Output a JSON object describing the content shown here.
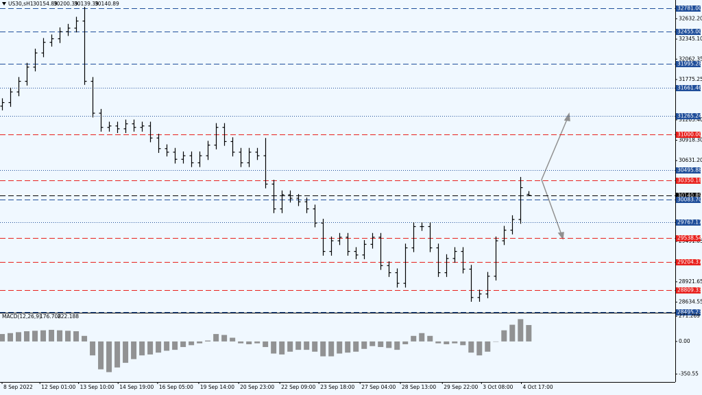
{
  "chart_data": [
    {
      "type": "candlestick",
      "symbol": "US30,sH1",
      "x": [
        0,
        1,
        2,
        3,
        4,
        5,
        6,
        7,
        8,
        9,
        10,
        11,
        12,
        13,
        14,
        15,
        16,
        17,
        18,
        19,
        20,
        21,
        22,
        23,
        24,
        25,
        26,
        27,
        28,
        29,
        30,
        31,
        32,
        33,
        34,
        35,
        36,
        37,
        38,
        39,
        40,
        41,
        42,
        43,
        44,
        45,
        46,
        47,
        48,
        49,
        50,
        51,
        52,
        53,
        54,
        55,
        56,
        57,
        58,
        59,
        60,
        61,
        62,
        63,
        64
      ],
      "open": [
        31400,
        31450,
        31600,
        31750,
        31950,
        32150,
        32300,
        32350,
        32450,
        32500,
        32600,
        31750,
        31300,
        31100,
        31120,
        31080,
        31150,
        31100,
        31120,
        30950,
        30800,
        30750,
        30650,
        30700,
        30600,
        30700,
        30850,
        31100,
        30900,
        30750,
        30600,
        30750,
        30700,
        30300,
        29950,
        30150,
        30100,
        30050,
        29950,
        29750,
        29350,
        29500,
        29550,
        29350,
        29300,
        29450,
        29550,
        29150,
        29050,
        28900,
        29400,
        29700,
        29700,
        29400,
        29050,
        29250,
        29350,
        29100,
        28700,
        28750,
        29000,
        29500,
        29650,
        29800,
        30154.89
      ],
      "high": [
        31510,
        31660,
        31810,
        32010,
        32210,
        32360,
        32410,
        32510,
        32560,
        32660,
        32800,
        31810,
        31360,
        31180,
        31180,
        31210,
        31210,
        31180,
        31180,
        31010,
        30860,
        30810,
        30760,
        30760,
        30760,
        30910,
        31160,
        31160,
        30960,
        30810,
        30810,
        30810,
        30950,
        30360,
        30210,
        30210,
        30160,
        30110,
        30010,
        29810,
        29560,
        29610,
        29610,
        29410,
        29510,
        29610,
        29610,
        29210,
        29110,
        29460,
        29760,
        29760,
        29760,
        29460,
        29310,
        29410,
        29410,
        29160,
        28810,
        29060,
        29560,
        29710,
        29860,
        30400,
        30200.39
      ],
      "low": [
        31340,
        31390,
        31540,
        31690,
        31890,
        32090,
        32240,
        32290,
        32390,
        32440,
        31700,
        31240,
        31040,
        31040,
        31020,
        31020,
        31040,
        31040,
        30890,
        30740,
        30690,
        30590,
        30590,
        30540,
        30540,
        30640,
        30790,
        30840,
        30690,
        30540,
        30540,
        30640,
        30240,
        29890,
        29890,
        30040,
        29990,
        29890,
        29690,
        29290,
        29290,
        29440,
        29290,
        29240,
        29240,
        29390,
        29090,
        28990,
        28840,
        28840,
        29340,
        29640,
        29340,
        28990,
        28990,
        29190,
        29040,
        28640,
        28640,
        28690,
        28940,
        29440,
        29590,
        29740,
        30139.39
      ],
      "close": [
        31450,
        31600,
        31750,
        31950,
        32150,
        32300,
        32350,
        32450,
        32500,
        32600,
        31750,
        31300,
        31100,
        31120,
        31080,
        31150,
        31100,
        31120,
        30950,
        30800,
        30750,
        30650,
        30700,
        30600,
        30700,
        30850,
        31100,
        30900,
        30750,
        30600,
        30750,
        30700,
        30300,
        29950,
        30150,
        30100,
        30050,
        29950,
        29750,
        29350,
        29500,
        29550,
        29350,
        29300,
        29450,
        29550,
        29150,
        29050,
        28900,
        29400,
        29700,
        29700,
        29400,
        29050,
        29250,
        29350,
        29100,
        28700,
        28750,
        29000,
        29500,
        29650,
        29800,
        30250,
        30140.89
      ],
      "color": "#000000",
      "xlim": [
        -0.25,
        81.8
      ],
      "xticks": [
        {
          "value": 0,
          "label": "8 Sep 2022"
        },
        {
          "value": 4.6,
          "label": "12 Sep 01:00"
        },
        {
          "value": 9.3,
          "label": "13 Sep 10:00"
        },
        {
          "value": 14.1,
          "label": "14 Sep 19:00"
        },
        {
          "value": 18.9,
          "label": "16 Sep 05:00"
        },
        {
          "value": 23.9,
          "label": "19 Sep 14:00"
        },
        {
          "value": 28.75,
          "label": "20 Sep 23:00"
        },
        {
          "value": 33.75,
          "label": "22 Sep 09:00"
        },
        {
          "value": 38.5,
          "label": "23 Sep 18:00"
        },
        {
          "value": 43.5,
          "label": "27 Sep 04:00"
        },
        {
          "value": 48.4,
          "label": "28 Sep 13:00"
        },
        {
          "value": 53.5,
          "label": "29 Sep 22:00"
        },
        {
          "value": 58.25,
          "label": "3 Oct 08:00"
        },
        {
          "value": 63.1,
          "label": "4 Oct 17:00"
        }
      ],
      "ylim": [
        28495,
        32897
      ],
      "yticks": [
        {
          "value": 32632.2,
          "label": "32632.20"
        },
        {
          "value": 32345.1,
          "label": "32345.10"
        },
        32062.35,
        31775.25,
        {
          "value": 31205.4,
          "label": "31205.40"
        },
        {
          "value": 30918.3,
          "label": "30918.30"
        },
        {
          "value": 30631.2,
          "label": "30631.20"
        },
        29491.05,
        28921.65,
        28634.55
      ],
      "levels": [
        {
          "value": 32781,
          "label": "32781.00",
          "color": "#1f4e9a",
          "style": "dashed"
        },
        {
          "value": 32455,
          "label": "32455.00",
          "color": "#1f4e9a",
          "style": "dashed"
        },
        {
          "value": 31995.28,
          "color": "#1f4e9a",
          "style": "dashed"
        },
        {
          "value": 31661.46,
          "color": "#1f4e9a",
          "style": "dotted"
        },
        {
          "value": 31265.24,
          "color": "#1f4e9a",
          "style": "dotted"
        },
        {
          "value": 31000,
          "label": "31000.00",
          "color": "#e8201c",
          "style": "dashed"
        },
        {
          "value": 30495.88,
          "color": "#1f4e9a",
          "style": "dotted"
        },
        {
          "value": 30350.18,
          "color": "#e8201c",
          "style": "dashed"
        },
        {
          "value": 30140.89,
          "color": "#000000",
          "style": "dashed"
        },
        {
          "value": 30083.7,
          "label": "30083.70",
          "color": "#1f4e9a",
          "style": "dashed"
        },
        {
          "value": 29767.17,
          "color": "#1f4e9a",
          "style": "dotted"
        },
        {
          "value": 29538.54,
          "color": "#e8201c",
          "style": "dashed"
        },
        {
          "value": 29204.37,
          "color": "#e8201c",
          "style": "dashed"
        },
        {
          "value": 28809.33,
          "color": "#e8201c",
          "style": "dashed"
        },
        {
          "value": 28495.23,
          "color": "#1f4e9a",
          "style": "dashed"
        }
      ]
    },
    {
      "type": "bar",
      "title": "MACD(12,26,9)",
      "signal_value": 222.188,
      "values": [
        80,
        90,
        100,
        110,
        115,
        120,
        125,
        120,
        115,
        110,
        60,
        -150,
        -300,
        -330,
        -280,
        -230,
        -190,
        -150,
        -140,
        -120,
        -100,
        -90,
        -60,
        -40,
        -20,
        10,
        80,
        70,
        40,
        -20,
        -30,
        -20,
        -60,
        -130,
        -140,
        -110,
        -90,
        -90,
        -110,
        -160,
        -160,
        -130,
        -120,
        -110,
        -80,
        -50,
        -60,
        -70,
        -90,
        -30,
        60,
        90,
        60,
        -20,
        -30,
        -20,
        -40,
        -120,
        -150,
        -110,
        0,
        120,
        180,
        240,
        176.708
      ],
      "color": "#808080",
      "ylim": [
        -436,
        302
      ],
      "yticks": [
        271.269,
        {
          "value": 0,
          "label": "0.00"
        },
        -350.55
      ]
    }
  ]
}
